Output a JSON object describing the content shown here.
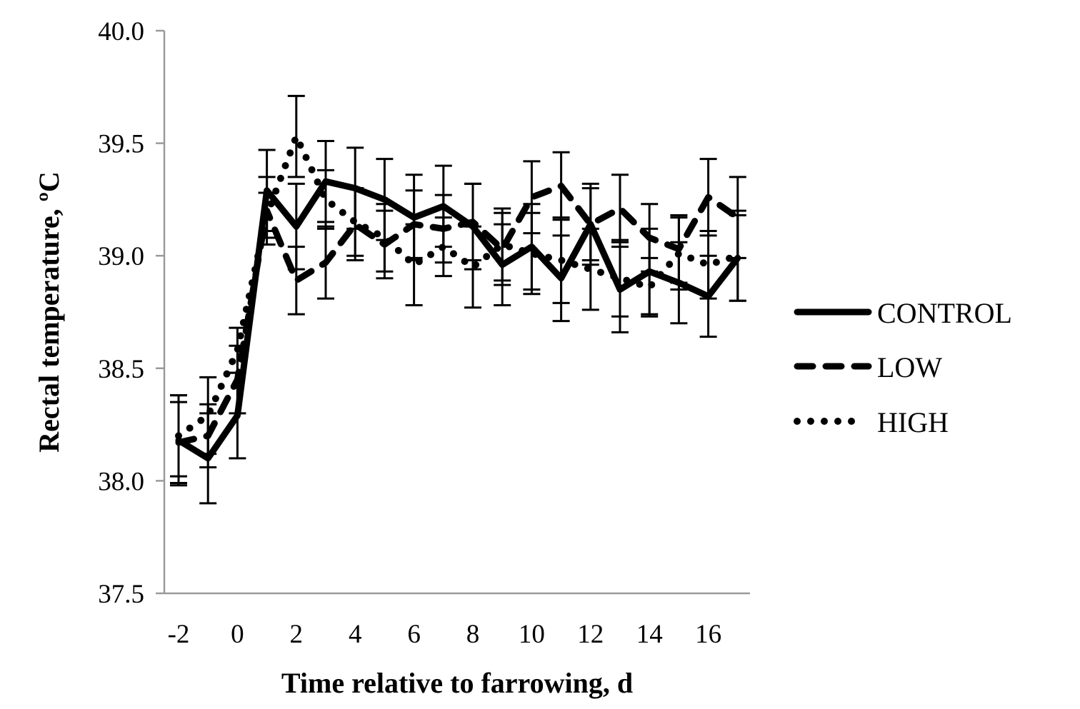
{
  "chart_data": {
    "type": "line",
    "title": "",
    "xlabel": "Time relative to farrowing, d",
    "ylabel": "Rectal temperature, ºC",
    "ylim": [
      37.5,
      40.0
    ],
    "xlim": [
      -2,
      17
    ],
    "yticks": [
      "37.5",
      "38.0",
      "38.5",
      "39.0",
      "39.5",
      "40.0"
    ],
    "ytick_values": [
      37.5,
      38.0,
      38.5,
      39.0,
      39.5,
      40.0
    ],
    "xticks": [
      "-2",
      "0",
      "2",
      "4",
      "6",
      "8",
      "10",
      "12",
      "14",
      "16"
    ],
    "xtick_values": [
      -2,
      0,
      2,
      4,
      6,
      8,
      10,
      12,
      14,
      16
    ],
    "grid": false,
    "legend_position": "right",
    "x": [
      -2,
      -1,
      0,
      1,
      2,
      3,
      4,
      5,
      6,
      7,
      8,
      9,
      10,
      11,
      12,
      13,
      14,
      15,
      16,
      17
    ],
    "series": [
      {
        "name": "CONTROL",
        "style": "solid",
        "values": [
          38.18,
          38.1,
          38.29,
          39.29,
          39.13,
          39.33,
          39.3,
          39.25,
          39.17,
          39.22,
          39.13,
          38.96,
          39.04,
          38.9,
          39.14,
          38.85,
          38.93,
          38.88,
          38.82,
          38.99
        ],
        "error": [
          0.2,
          0.2,
          0.19,
          0.18,
          0.19,
          0.18,
          0.18,
          0.18,
          0.19,
          0.18,
          0.19,
          0.18,
          0.19,
          0.19,
          0.18,
          0.19,
          0.19,
          0.18,
          0.18,
          0.19
        ]
      },
      {
        "name": "LOW",
        "style": "dashed",
        "values": [
          38.17,
          38.2,
          38.45,
          39.2,
          38.89,
          38.97,
          39.14,
          39.05,
          39.14,
          39.12,
          39.15,
          39.03,
          39.26,
          39.31,
          39.14,
          39.21,
          39.08,
          39.03,
          39.26,
          39.17
        ],
        "error": [
          0.18,
          0.14,
          0.15,
          0.15,
          0.15,
          0.16,
          0.16,
          0.15,
          0.15,
          0.15,
          0.17,
          0.16,
          0.16,
          0.15,
          0.16,
          0.15,
          0.15,
          0.15,
          0.17,
          0.18
        ]
      },
      {
        "name": "HIGH",
        "style": "dotted",
        "values": [
          38.2,
          38.29,
          38.58,
          39.18,
          39.53,
          39.25,
          39.15,
          39.08,
          38.96,
          39.04,
          38.95,
          39.05,
          39.01,
          38.98,
          38.94,
          38.9,
          38.86,
          39.01,
          38.96,
          39.0
        ],
        "error": [
          0.18,
          0.17,
          0.1,
          0.1,
          0.18,
          0.13,
          0.15,
          0.15,
          0.18,
          0.13,
          0.18,
          0.16,
          0.18,
          0.19,
          0.18,
          0.17,
          0.13,
          0.16,
          0.15,
          0.2
        ]
      }
    ]
  }
}
